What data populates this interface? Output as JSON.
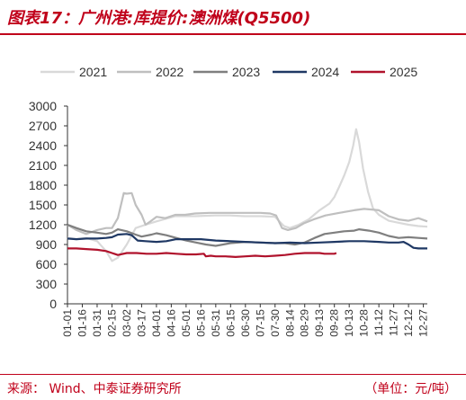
{
  "header": {
    "title": "图表17：广州港:库提价:澳洲煤(Q5500)"
  },
  "footer": {
    "source": "来源： Wind、中泰证券研究所",
    "unit": "（单位：元/吨）"
  },
  "chart_data": {
    "type": "line",
    "title": "广州港:库提价:澳洲煤(Q5500)",
    "ylabel": "",
    "xlabel": "",
    "ylim": [
      0,
      3000
    ],
    "yticks": [
      0,
      300,
      600,
      900,
      1200,
      1500,
      1800,
      2100,
      2400,
      2700,
      3000
    ],
    "legend_position": "top",
    "grid": false,
    "x_tick_labels": [
      "01-01",
      "01-16",
      "01-31",
      "02-15",
      "03-02",
      "03-17",
      "04-01",
      "04-16",
      "05-01",
      "05-16",
      "05-31",
      "06-15",
      "06-30",
      "07-15",
      "07-30",
      "08-14",
      "08-29",
      "09-13",
      "09-28",
      "10-13",
      "10-28",
      "11-12",
      "11-27",
      "12-12",
      "12-27"
    ],
    "x_day_of_year": [
      1,
      16,
      31,
      46,
      61,
      76,
      91,
      106,
      121,
      136,
      151,
      166,
      181,
      196,
      211,
      226,
      241,
      256,
      271,
      286,
      301,
      316,
      331,
      346,
      361
    ],
    "series": [
      {
        "name": "2021",
        "color": "#d9d9d9",
        "points": [
          [
            1,
            1000
          ],
          [
            10,
            980
          ],
          [
            20,
            1000
          ],
          [
            31,
            950
          ],
          [
            40,
            800
          ],
          [
            46,
            650
          ],
          [
            52,
            700
          ],
          [
            61,
            900
          ],
          [
            70,
            1150
          ],
          [
            80,
            1200
          ],
          [
            91,
            1250
          ],
          [
            110,
            1330
          ],
          [
            130,
            1330
          ],
          [
            150,
            1340
          ],
          [
            165,
            1340
          ],
          [
            180,
            1330
          ],
          [
            196,
            1330
          ],
          [
            211,
            1320
          ],
          [
            220,
            1180
          ],
          [
            226,
            1150
          ],
          [
            235,
            1200
          ],
          [
            245,
            1280
          ],
          [
            256,
            1420
          ],
          [
            266,
            1520
          ],
          [
            271,
            1620
          ],
          [
            276,
            1780
          ],
          [
            281,
            1950
          ],
          [
            286,
            2150
          ],
          [
            290,
            2400
          ],
          [
            293,
            2650
          ],
          [
            296,
            2450
          ],
          [
            300,
            2050
          ],
          [
            305,
            1700
          ],
          [
            310,
            1450
          ],
          [
            316,
            1350
          ],
          [
            326,
            1260
          ],
          [
            336,
            1230
          ],
          [
            346,
            1200
          ],
          [
            356,
            1180
          ],
          [
            365,
            1170
          ]
        ]
      },
      {
        "name": "2022",
        "color": "#bfbfbf",
        "points": [
          [
            1,
            1200
          ],
          [
            10,
            1120
          ],
          [
            20,
            1060
          ],
          [
            31,
            1120
          ],
          [
            40,
            1150
          ],
          [
            46,
            1150
          ],
          [
            52,
            1300
          ],
          [
            58,
            1680
          ],
          [
            61,
            1670
          ],
          [
            66,
            1680
          ],
          [
            70,
            1500
          ],
          [
            76,
            1350
          ],
          [
            80,
            1200
          ],
          [
            85,
            1250
          ],
          [
            91,
            1320
          ],
          [
            100,
            1300
          ],
          [
            110,
            1350
          ],
          [
            120,
            1350
          ],
          [
            130,
            1370
          ],
          [
            145,
            1380
          ],
          [
            160,
            1380
          ],
          [
            176,
            1380
          ],
          [
            196,
            1380
          ],
          [
            206,
            1370
          ],
          [
            212,
            1340
          ],
          [
            218,
            1150
          ],
          [
            224,
            1120
          ],
          [
            232,
            1150
          ],
          [
            240,
            1220
          ],
          [
            250,
            1280
          ],
          [
            262,
            1340
          ],
          [
            276,
            1380
          ],
          [
            291,
            1420
          ],
          [
            301,
            1440
          ],
          [
            316,
            1420
          ],
          [
            326,
            1330
          ],
          [
            336,
            1280
          ],
          [
            346,
            1260
          ],
          [
            356,
            1300
          ],
          [
            365,
            1250
          ]
        ]
      },
      {
        "name": "2023",
        "color": "#7f7f7f",
        "points": [
          [
            1,
            1200
          ],
          [
            10,
            1150
          ],
          [
            20,
            1100
          ],
          [
            31,
            1080
          ],
          [
            40,
            1060
          ],
          [
            46,
            1080
          ],
          [
            52,
            1130
          ],
          [
            61,
            1100
          ],
          [
            70,
            1050
          ],
          [
            76,
            1020
          ],
          [
            86,
            1050
          ],
          [
            91,
            1070
          ],
          [
            101,
            1040
          ],
          [
            111,
            1000
          ],
          [
            121,
            960
          ],
          [
            131,
            930
          ],
          [
            141,
            900
          ],
          [
            151,
            880
          ],
          [
            166,
            920
          ],
          [
            181,
            940
          ],
          [
            196,
            930
          ],
          [
            211,
            920
          ],
          [
            221,
            920
          ],
          [
            231,
            900
          ],
          [
            241,
            930
          ],
          [
            251,
            1000
          ],
          [
            261,
            1060
          ],
          [
            271,
            1080
          ],
          [
            281,
            1100
          ],
          [
            291,
            1110
          ],
          [
            296,
            1130
          ],
          [
            306,
            1110
          ],
          [
            316,
            1080
          ],
          [
            326,
            1030
          ],
          [
            336,
            1000
          ],
          [
            346,
            1010
          ],
          [
            356,
            1000
          ],
          [
            365,
            990
          ]
        ]
      },
      {
        "name": "2024",
        "color": "#1f3864",
        "points": [
          [
            1,
            990
          ],
          [
            10,
            980
          ],
          [
            20,
            990
          ],
          [
            31,
            990
          ],
          [
            40,
            1000
          ],
          [
            46,
            1010
          ],
          [
            52,
            1050
          ],
          [
            61,
            1060
          ],
          [
            66,
            1040
          ],
          [
            72,
            960
          ],
          [
            80,
            950
          ],
          [
            91,
            940
          ],
          [
            101,
            950
          ],
          [
            111,
            980
          ],
          [
            121,
            980
          ],
          [
            136,
            980
          ],
          [
            151,
            960
          ],
          [
            166,
            950
          ],
          [
            181,
            940
          ],
          [
            196,
            930
          ],
          [
            211,
            920
          ],
          [
            226,
            930
          ],
          [
            241,
            920
          ],
          [
            256,
            930
          ],
          [
            271,
            940
          ],
          [
            286,
            950
          ],
          [
            301,
            950
          ],
          [
            316,
            940
          ],
          [
            326,
            930
          ],
          [
            336,
            930
          ],
          [
            341,
            940
          ],
          [
            346,
            900
          ],
          [
            351,
            850
          ],
          [
            356,
            840
          ],
          [
            365,
            840
          ]
        ]
      },
      {
        "name": "2025",
        "color": "#b0122c",
        "points": [
          [
            1,
            840
          ],
          [
            10,
            840
          ],
          [
            20,
            830
          ],
          [
            31,
            820
          ],
          [
            40,
            800
          ],
          [
            46,
            770
          ],
          [
            52,
            740
          ],
          [
            61,
            770
          ],
          [
            71,
            770
          ],
          [
            81,
            760
          ],
          [
            91,
            760
          ],
          [
            101,
            770
          ],
          [
            111,
            760
          ],
          [
            121,
            750
          ],
          [
            131,
            750
          ],
          [
            139,
            760
          ],
          [
            141,
            720
          ],
          [
            146,
            730
          ],
          [
            151,
            720
          ],
          [
            161,
            720
          ],
          [
            171,
            710
          ],
          [
            181,
            720
          ],
          [
            191,
            730
          ],
          [
            201,
            720
          ],
          [
            211,
            730
          ],
          [
            221,
            740
          ],
          [
            231,
            760
          ],
          [
            241,
            770
          ],
          [
            251,
            770
          ],
          [
            256,
            770
          ],
          [
            261,
            760
          ],
          [
            266,
            760
          ],
          [
            271,
            760
          ],
          [
            273,
            770
          ]
        ]
      }
    ]
  }
}
